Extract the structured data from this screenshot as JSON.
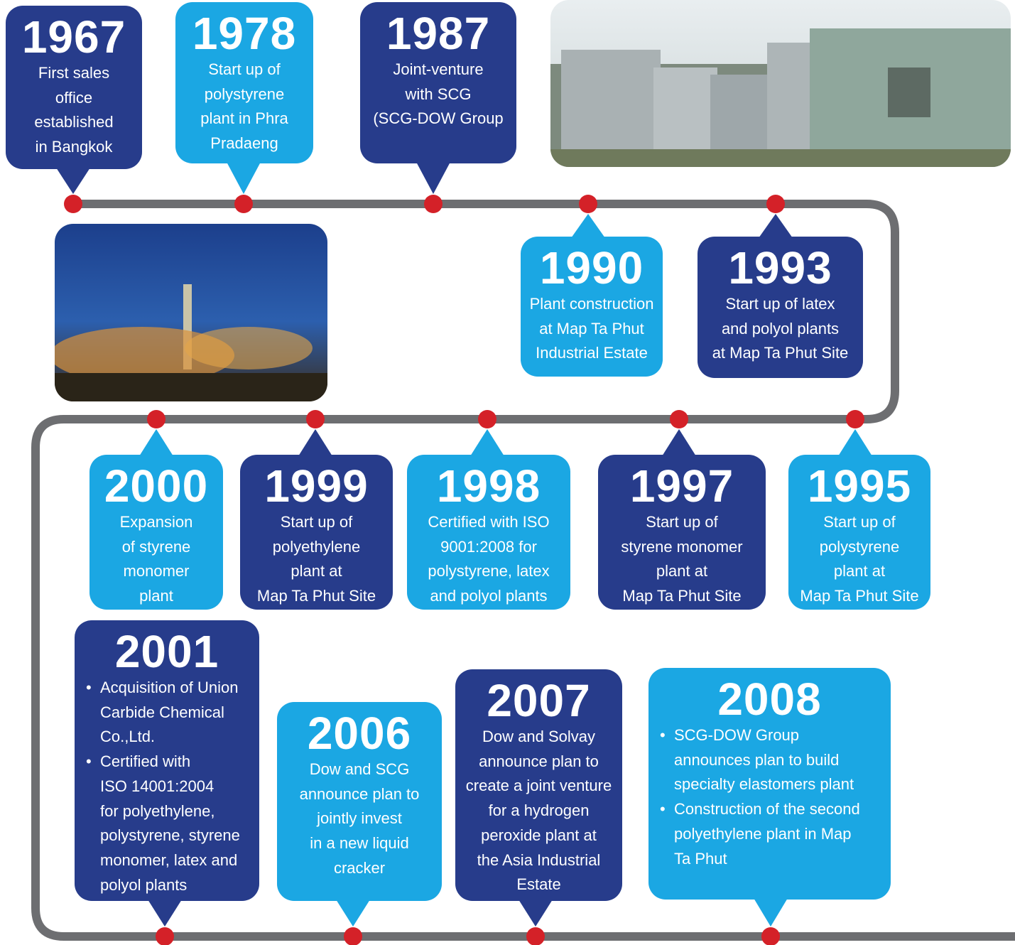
{
  "events": [
    {
      "year": "1967",
      "lines": [
        "First sales",
        "office",
        "established",
        "in Bangkok"
      ]
    },
    {
      "year": "1978",
      "lines": [
        "Start up of",
        "polystyrene",
        "plant in Phra",
        "Pradaeng"
      ]
    },
    {
      "year": "1987",
      "lines": [
        "Joint-venture",
        "with SCG",
        "(SCG-DOW Group"
      ]
    },
    {
      "year": "1990",
      "lines": [
        "Plant construction",
        "at Map Ta Phut",
        "Industrial Estate"
      ]
    },
    {
      "year": "1993",
      "lines": [
        "Start up of latex",
        "and polyol plants",
        "at Map Ta Phut Site"
      ]
    },
    {
      "year": "2000",
      "lines": [
        "Expansion",
        "of styrene",
        "monomer",
        "plant"
      ]
    },
    {
      "year": "1999",
      "lines": [
        "Start up of",
        "polyethylene",
        "plant at",
        "Map Ta Phut Site"
      ]
    },
    {
      "year": "1998",
      "lines": [
        "Certified with ISO",
        "9001:2008 for",
        "polystyrene, latex",
        "and polyol plants"
      ]
    },
    {
      "year": "1997",
      "lines": [
        "Start up of",
        "styrene monomer",
        "plant at",
        "Map Ta Phut Site"
      ]
    },
    {
      "year": "1995",
      "lines": [
        "Start up of",
        "polystyrene",
        "plant at",
        "Map Ta Phut Site"
      ]
    },
    {
      "year": "2001",
      "bullets": [
        [
          "Acquisition of Union",
          "Carbide Chemical",
          "Co.,Ltd."
        ],
        [
          "Certified with",
          "ISO 14001:2004",
          "for polyethylene,",
          "polystyrene, styrene",
          "monomer, latex and",
          "polyol plants"
        ]
      ]
    },
    {
      "year": "2006",
      "lines": [
        "Dow and SCG",
        "announce plan to",
        "jointly invest",
        "in a new liquid",
        "cracker"
      ]
    },
    {
      "year": "2007",
      "lines": [
        "Dow and Solvay",
        "announce plan to",
        "create a joint venture",
        "for a hydrogen",
        "peroxide plant at",
        "the Asia Industrial",
        "Estate"
      ]
    },
    {
      "year": "2008",
      "bullets": [
        [
          "SCG-DOW Group",
          "announces plan to build",
          "specialty elastomers plant"
        ],
        [
          "Construction of the second",
          "polyethylene plant in Map",
          "Ta Phut"
        ]
      ]
    }
  ]
}
